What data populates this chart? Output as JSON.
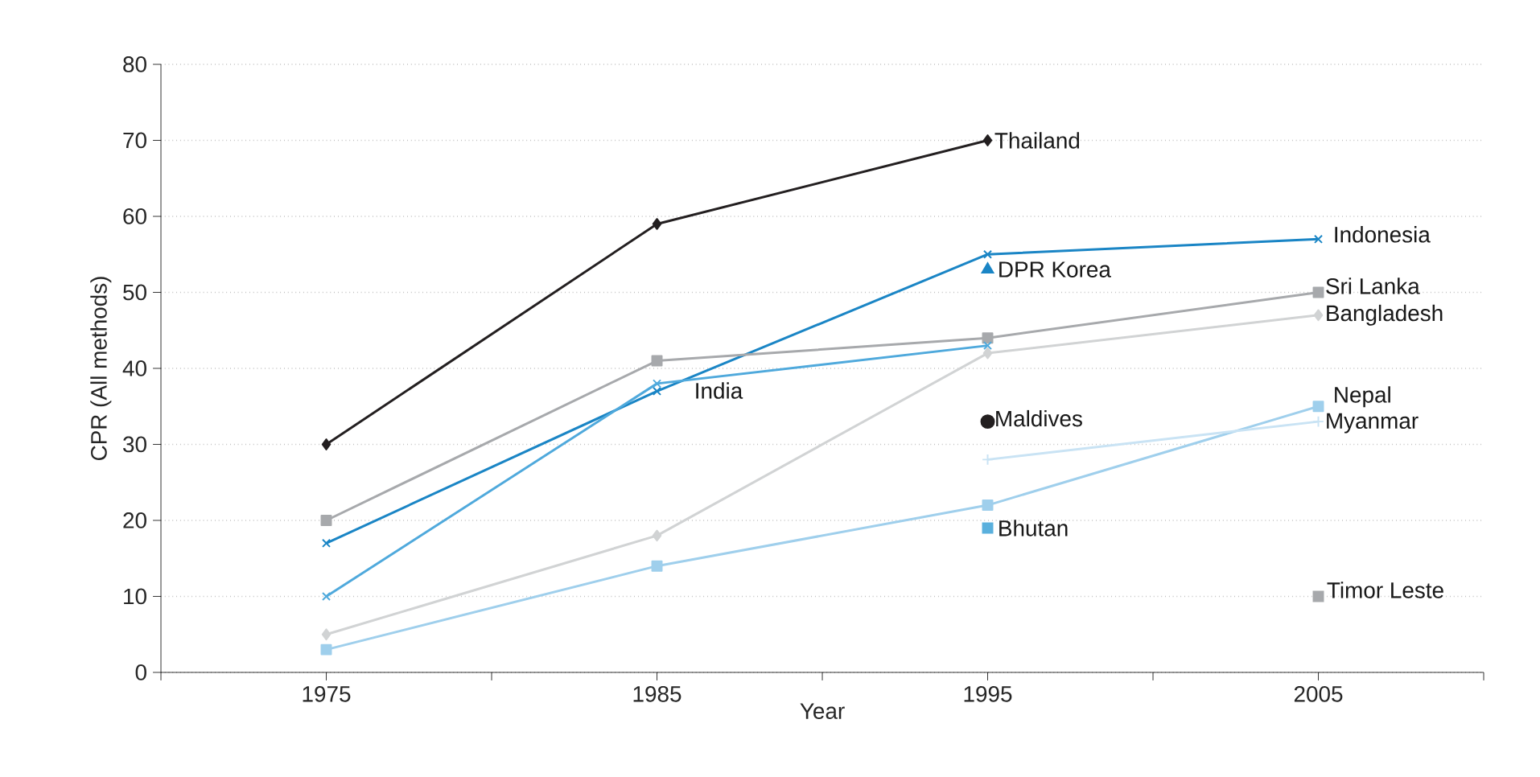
{
  "chart_data": {
    "type": "line",
    "xlabel": "Year",
    "ylabel": "CPR (All methods)",
    "x": [
      1975,
      1985,
      1995,
      2005
    ],
    "xlim": [
      1970,
      2010
    ],
    "xticks": [
      {
        "value": 1970,
        "label": null
      },
      1975,
      {
        "value": 1980,
        "label": null
      },
      1985,
      {
        "value": 1990,
        "label": null
      },
      1995,
      {
        "value": 2000,
        "label": null
      },
      2005,
      {
        "value": 2010,
        "label": null
      }
    ],
    "ylim": [
      0,
      80
    ],
    "yticks": [
      0,
      10,
      20,
      30,
      40,
      50,
      60,
      70,
      80
    ],
    "grid": "y",
    "series": [
      {
        "name": "Thailand",
        "color": "#231f20",
        "marker": "diamond",
        "values": [
          30,
          59,
          70,
          null
        ]
      },
      {
        "name": "Indonesia",
        "color": "#1a85c5",
        "marker": "cross",
        "values": [
          17,
          37,
          55,
          57
        ]
      },
      {
        "name": "Sri Lanka",
        "color": "#a7a9ac",
        "marker": "square",
        "values": [
          20,
          41,
          44,
          50
        ]
      },
      {
        "name": "India",
        "color": "#4fa9dc",
        "marker": "cross",
        "values": [
          10,
          38,
          43,
          null
        ]
      },
      {
        "name": "Bangladesh",
        "color": "#d1d3d4",
        "marker": "diamond",
        "values": [
          5,
          18,
          42,
          47
        ]
      },
      {
        "name": "Nepal",
        "color": "#9fcfec",
        "marker": "square",
        "values": [
          3,
          14,
          22,
          35
        ]
      },
      {
        "name": "Myanmar",
        "color": "#c9e3f4",
        "marker": "plus",
        "values": [
          null,
          null,
          28,
          33
        ]
      },
      {
        "name": "DPR Korea",
        "type": "scatter",
        "color": "#1a85c5",
        "marker": "triangle",
        "values": [
          null,
          null,
          53,
          null
        ]
      },
      {
        "name": "Maldives",
        "type": "scatter",
        "color": "#231f20",
        "marker": "circle",
        "values": [
          null,
          null,
          33,
          null
        ]
      },
      {
        "name": "Bhutan",
        "type": "scatter",
        "color": "#5ab0dd",
        "marker": "square",
        "values": [
          null,
          null,
          19,
          null
        ]
      },
      {
        "name": "Timor Leste",
        "type": "scatter",
        "color": "#a7a9ac",
        "marker": "square",
        "values": [
          null,
          null,
          null,
          10
        ]
      }
    ]
  }
}
